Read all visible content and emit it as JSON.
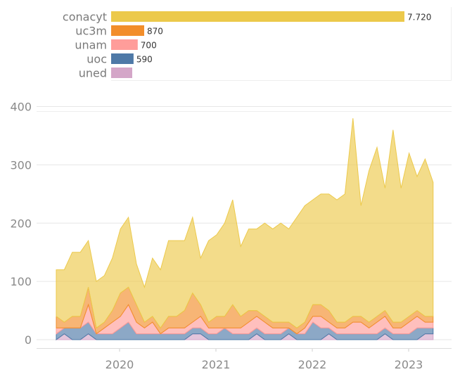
{
  "chart_data": [
    {
      "type": "bar",
      "orientation": "horizontal",
      "categories": [
        "conacyt",
        "uc3m",
        "unam",
        "uoc",
        "uned"
      ],
      "values": [
        7720,
        870,
        700,
        590,
        null
      ],
      "value_labels": [
        "7.720",
        "870",
        "700",
        "590",
        ""
      ],
      "colors": [
        "#ecc94b",
        "#f28e2b",
        "#ff9d9a",
        "#4e79a7",
        "#d4a6c8"
      ]
    },
    {
      "type": "area",
      "stacked": true,
      "xlabel": "",
      "ylabel": "",
      "x_ticks": [
        "2020",
        "2021",
        "2022",
        "2023"
      ],
      "y_ticks": [
        "0",
        "100",
        "200",
        "300",
        "400"
      ],
      "ylim": [
        0,
        420
      ],
      "grid": true,
      "x": [
        "2019-05",
        "2019-06",
        "2019-07",
        "2019-08",
        "2019-09",
        "2019-10",
        "2019-11",
        "2019-12",
        "2020-01",
        "2020-02",
        "2020-03",
        "2020-04",
        "2020-05",
        "2020-06",
        "2020-07",
        "2020-08",
        "2020-09",
        "2020-10",
        "2020-11",
        "2020-12",
        "2021-01",
        "2021-02",
        "2021-03",
        "2021-04",
        "2021-05",
        "2021-06",
        "2021-07",
        "2021-08",
        "2021-09",
        "2021-10",
        "2021-11",
        "2021-12",
        "2022-01",
        "2022-02",
        "2022-03",
        "2022-04",
        "2022-05",
        "2022-06",
        "2022-07",
        "2022-08",
        "2022-09",
        "2022-10",
        "2022-11",
        "2022-12",
        "2023-01",
        "2023-02",
        "2023-03",
        "2023-04"
      ],
      "series": [
        {
          "name": "uned",
          "color": "#d4a6c8",
          "values": [
            0,
            10,
            0,
            0,
            10,
            0,
            0,
            0,
            0,
            0,
            0,
            0,
            0,
            0,
            0,
            0,
            0,
            10,
            10,
            0,
            0,
            0,
            0,
            0,
            0,
            10,
            0,
            0,
            0,
            10,
            0,
            0,
            0,
            0,
            10,
            0,
            0,
            0,
            0,
            0,
            0,
            10,
            0,
            0,
            0,
            0,
            10,
            10
          ]
        },
        {
          "name": "uoc",
          "color": "#4e79a7",
          "values": [
            10,
            10,
            20,
            20,
            20,
            10,
            10,
            10,
            20,
            30,
            10,
            10,
            10,
            10,
            10,
            10,
            10,
            10,
            10,
            10,
            10,
            20,
            10,
            10,
            10,
            10,
            10,
            10,
            10,
            10,
            10,
            10,
            30,
            20,
            10,
            10,
            10,
            10,
            10,
            10,
            10,
            10,
            10,
            10,
            10,
            20,
            10,
            10
          ]
        },
        {
          "name": "unam",
          "color": "#ff9d9a",
          "values": [
            10,
            0,
            0,
            0,
            30,
            0,
            10,
            20,
            20,
            30,
            20,
            10,
            20,
            0,
            10,
            10,
            10,
            10,
            20,
            10,
            10,
            0,
            10,
            10,
            20,
            20,
            20,
            10,
            10,
            0,
            0,
            10,
            10,
            20,
            10,
            10,
            10,
            20,
            20,
            10,
            20,
            20,
            10,
            10,
            20,
            20,
            10,
            10
          ]
        },
        {
          "name": "uc3m",
          "color": "#f28e2b",
          "values": [
            20,
            10,
            20,
            20,
            30,
            10,
            10,
            20,
            40,
            30,
            30,
            10,
            10,
            10,
            20,
            20,
            30,
            50,
            20,
            10,
            20,
            20,
            40,
            20,
            20,
            10,
            10,
            10,
            10,
            10,
            10,
            10,
            20,
            20,
            20,
            10,
            10,
            10,
            10,
            10,
            10,
            10,
            10,
            10,
            10,
            10,
            10,
            10
          ]
        },
        {
          "name": "conacyt",
          "color": "#ecc94b",
          "values": [
            80,
            90,
            110,
            110,
            80,
            80,
            80,
            90,
            110,
            120,
            70,
            60,
            100,
            100,
            130,
            130,
            120,
            130,
            80,
            140,
            140,
            160,
            180,
            120,
            140,
            140,
            160,
            160,
            170,
            160,
            190,
            200,
            180,
            190,
            200,
            210,
            220,
            340,
            190,
            260,
            290,
            210,
            330,
            230,
            280,
            230,
            270,
            230
          ]
        }
      ]
    }
  ]
}
